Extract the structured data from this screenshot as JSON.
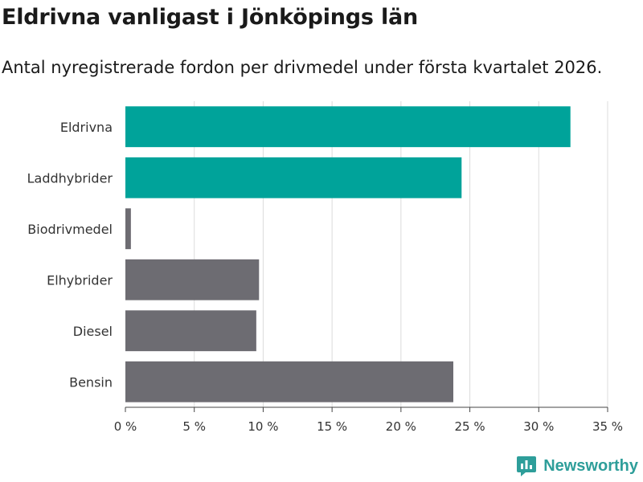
{
  "title": "Eldrivna vanligast i Jönköpings län",
  "subtitle": "Antal nyregistrerade fordon per drivmedel under första kvartalet 2026.",
  "brand": "Newsworthy",
  "colors": {
    "highlight": "#00a39a",
    "default": "#6d6c72",
    "grid": "#dcdcdc",
    "axis": "#444444",
    "brand": "#2e9e9a"
  },
  "chart_data": {
    "type": "bar",
    "orientation": "horizontal",
    "title": "Eldrivna vanligast i Jönköpings län",
    "subtitle": "Antal nyregistrerade fordon per drivmedel under första kvartalet 2026.",
    "xlabel": "",
    "ylabel": "",
    "xlim": [
      0,
      35
    ],
    "ticks": [
      0,
      5,
      10,
      15,
      20,
      25,
      30,
      35
    ],
    "tick_labels": [
      "0 %",
      "5 %",
      "10 %",
      "15 %",
      "20 %",
      "25 %",
      "30 %",
      "35 %"
    ],
    "grid": true,
    "categories": [
      "Eldrivna",
      "Laddhybrider",
      "Biodrivmedel",
      "Elhybrider",
      "Diesel",
      "Bensin"
    ],
    "values": [
      32.3,
      24.4,
      0.4,
      9.7,
      9.5,
      23.8
    ],
    "highlighted": [
      true,
      true,
      false,
      false,
      false,
      false
    ]
  }
}
